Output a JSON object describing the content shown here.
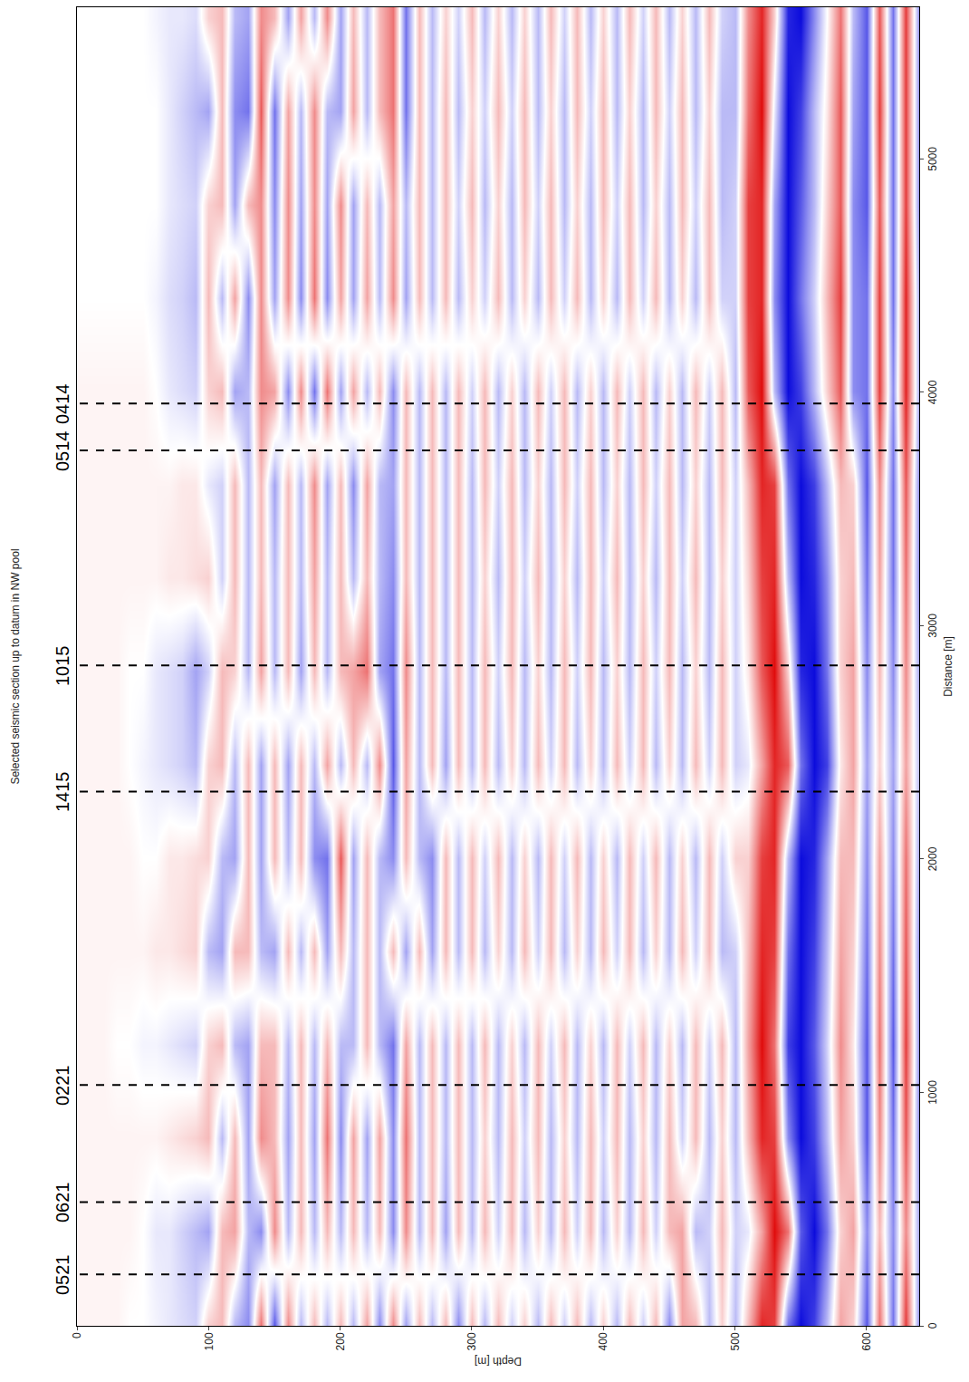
{
  "chart_data": {
    "type": "heatmap",
    "title": "Selected seismic section up to datum in NW pool",
    "x_label": "Distance [m]",
    "y_label": "Depth [m]",
    "xlim": [
      0,
      5650
    ],
    "ylim": [
      640,
      0
    ],
    "xticks": [
      0,
      1000,
      2000,
      3000,
      4000,
      5000
    ],
    "yticks": [
      0,
      100,
      200,
      300,
      400,
      500,
      600
    ],
    "zlim": [
      -1,
      1
    ],
    "wells": [
      {
        "text": "0521",
        "x": 220
      },
      {
        "text": "0621",
        "x": 530
      },
      {
        "text": "0221",
        "x": 1032
      },
      {
        "text": "1415",
        "x": 2289
      },
      {
        "text": "1015",
        "x": 2830
      },
      {
        "text": "0514",
        "x": 3751
      },
      {
        "text": "0414",
        "x": 3952
      }
    ],
    "line_style": "dash",
    "x": [
      0,
      400,
      800,
      1200,
      1600,
      2000,
      2400,
      2800,
      3200,
      3600,
      4000,
      4400,
      4800,
      5200,
      5600
    ],
    "y": [
      0,
      10,
      20,
      30,
      40,
      50,
      60,
      70,
      80,
      90,
      100,
      110,
      120,
      130,
      140,
      150,
      160,
      170,
      180,
      190,
      200,
      210,
      220,
      230,
      240,
      250,
      260,
      270,
      280,
      290,
      300,
      310,
      320,
      330,
      340,
      350,
      360,
      370,
      380,
      390,
      400,
      410,
      420,
      430,
      440,
      450,
      460,
      470,
      480,
      490,
      500,
      510,
      520,
      530,
      540,
      550,
      560,
      570,
      580,
      590,
      600,
      610,
      620,
      630,
      640
    ],
    "z": [
      [
        0.05,
        0.05,
        0.05,
        0.05,
        0.05,
        0.05,
        0.05,
        0.05,
        0.05,
        0.05,
        0.05,
        0,
        0,
        0,
        0
      ],
      [
        0.05,
        0.05,
        0.05,
        0.05,
        0.05,
        0.05,
        0.05,
        0.05,
        0.05,
        0.05,
        0.05,
        0,
        0,
        0,
        0
      ],
      [
        0.05,
        0.05,
        0.05,
        0.05,
        0.05,
        0.05,
        0.05,
        0.05,
        0.05,
        0.05,
        0.05,
        0,
        0,
        0,
        0
      ],
      [
        0.05,
        0.05,
        0.05,
        0,
        0.05,
        0.05,
        0.05,
        0.05,
        0.05,
        0.05,
        0.05,
        0,
        0,
        0,
        0
      ],
      [
        0,
        0.05,
        0.05,
        0,
        0.05,
        0.05,
        0,
        0,
        0.05,
        0.05,
        0.05,
        0,
        0,
        0,
        0
      ],
      [
        0,
        0,
        0.05,
        -0.05,
        0.05,
        0,
        -0.05,
        0,
        0.05,
        0.05,
        0.05,
        0,
        0,
        0,
        0
      ],
      [
        -0.05,
        -0.1,
        0.05,
        -0.05,
        0.1,
        0,
        -0.1,
        -0.1,
        0.05,
        0.05,
        0,
        -0.05,
        0,
        0,
        -0.05
      ],
      [
        -0.1,
        -0.1,
        0.1,
        -0.1,
        0.1,
        0.1,
        -0.15,
        -0.15,
        0.1,
        0.05,
        -0.1,
        -0.15,
        -0.1,
        -0.1,
        -0.1
      ],
      [
        -0.15,
        -0.2,
        0.15,
        -0.15,
        0.15,
        0.1,
        -0.2,
        -0.2,
        0.1,
        0.1,
        -0.15,
        -0.2,
        -0.15,
        -0.2,
        -0.1
      ],
      [
        -0.2,
        -0.3,
        0.2,
        -0.2,
        0.2,
        0.15,
        -0.3,
        -0.4,
        0.15,
        0.1,
        -0.2,
        -0.3,
        -0.2,
        -0.3,
        -0.15
      ],
      [
        0.2,
        -0.4,
        0.3,
        0.2,
        -0.3,
        0.2,
        0.2,
        -0.2,
        0.2,
        -0.1,
        0.2,
        0.3,
        0.2,
        -0.4,
        0.2
      ],
      [
        0.3,
        0.3,
        -0.3,
        0.3,
        -0.4,
        -0.3,
        0.3,
        0.3,
        -0.2,
        -0.2,
        0.3,
        -0.3,
        0.3,
        0.3,
        0.3
      ],
      [
        -0.3,
        0.4,
        0.3,
        -0.3,
        0.3,
        -0.4,
        -0.3,
        0.2,
        0.3,
        0.3,
        -0.4,
        0.4,
        -0.4,
        -0.5,
        -0.3
      ],
      [
        -0.5,
        -0.3,
        -0.4,
        -0.4,
        0.3,
        0.3,
        0.3,
        -0.3,
        -0.3,
        -0.3,
        -0.3,
        -0.5,
        0.3,
        -0.6,
        -0.4
      ],
      [
        0.6,
        -0.5,
        0.5,
        0.3,
        -0.3,
        -0.4,
        -0.4,
        0.4,
        0.3,
        0.3,
        0.5,
        0.5,
        0.5,
        0.7,
        0.5
      ],
      [
        -0.7,
        0.5,
        0.3,
        0.3,
        -0.4,
        0.3,
        0.3,
        -0.3,
        -0.3,
        -0.4,
        0.4,
        -0.4,
        -0.5,
        -0.6,
        0.3
      ],
      [
        0.5,
        -0.3,
        -0.4,
        -0.3,
        0.3,
        -0.3,
        -0.4,
        0.3,
        0.3,
        0.3,
        -0.5,
        0.5,
        0.5,
        0.4,
        -0.4
      ],
      [
        -0.3,
        0.3,
        0.3,
        0.3,
        -0.3,
        0.3,
        0.3,
        -0.4,
        -0.3,
        -0.3,
        0.5,
        -0.5,
        -0.4,
        -0.3,
        0.4
      ],
      [
        0.3,
        -0.3,
        -0.4,
        -0.3,
        0.3,
        -0.5,
        -0.3,
        0.3,
        0.4,
        0.5,
        -0.6,
        0.6,
        0.5,
        0.5,
        -0.3
      ],
      [
        -0.3,
        0.3,
        0.6,
        0.3,
        -0.4,
        -0.6,
        0.4,
        -0.3,
        -0.3,
        -0.4,
        0.6,
        -0.5,
        -0.4,
        -0.3,
        0.5
      ],
      [
        0.3,
        -0.3,
        -0.5,
        -0.3,
        0.3,
        0.7,
        -0.3,
        0.3,
        0.3,
        0.3,
        -0.4,
        0.4,
        0.5,
        -0.4,
        -0.4
      ],
      [
        -0.3,
        0.3,
        0.4,
        -0.3,
        -0.3,
        -0.4,
        0.3,
        0.4,
        -0.3,
        -0.5,
        0.4,
        -0.4,
        -0.4,
        0.4,
        0.3
      ],
      [
        0.4,
        -0.3,
        -0.4,
        0.3,
        0.3,
        0.3,
        -0.3,
        0.6,
        0.3,
        0.4,
        -0.3,
        0.4,
        0.3,
        -0.3,
        -0.3
      ],
      [
        -0.5,
        0.3,
        0.4,
        -0.3,
        -0.3,
        -0.3,
        0.5,
        -0.4,
        -0.3,
        -0.3,
        0.3,
        -0.3,
        -0.3,
        0.3,
        0.3
      ],
      [
        0.5,
        -0.5,
        -0.5,
        -0.6,
        0.3,
        -0.5,
        -0.7,
        -0.6,
        -0.5,
        -0.4,
        -0.5,
        0.5,
        0.4,
        0.6,
        0.6
      ],
      [
        -0.4,
        0.5,
        0.6,
        0.4,
        -0.4,
        0.3,
        0.4,
        0.5,
        0.3,
        0.3,
        0.3,
        -0.4,
        -0.3,
        -0.6,
        -0.6
      ],
      [
        0.3,
        -0.3,
        -0.3,
        -0.3,
        0.3,
        -0.3,
        -0.3,
        -0.3,
        -0.3,
        -0.3,
        -0.3,
        0.3,
        0.3,
        0.3,
        0.3
      ],
      [
        -0.3,
        0.3,
        0.3,
        0.3,
        -0.4,
        -0.5,
        0.3,
        0.3,
        0.3,
        0.3,
        0.3,
        -0.3,
        -0.3,
        -0.3,
        -0.3
      ],
      [
        0.3,
        -0.4,
        -0.3,
        -0.3,
        0.3,
        0.3,
        -0.4,
        -0.3,
        -0.3,
        -0.3,
        -0.3,
        0.3,
        0.3,
        0.3,
        0.2
      ],
      [
        -0.5,
        0.3,
        0.3,
        0.3,
        -0.3,
        -0.3,
        0.3,
        0.3,
        0.3,
        0.3,
        0.3,
        -0.3,
        -0.2,
        -0.3,
        -0.2
      ],
      [
        0.3,
        -0.3,
        -0.3,
        -0.3,
        0.3,
        0.3,
        -0.3,
        -0.3,
        -0.3,
        -0.3,
        -0.2,
        0.2,
        0.3,
        0.2,
        0.3
      ],
      [
        -0.3,
        0.3,
        0.2,
        0.3,
        -0.3,
        -0.2,
        0.3,
        0.3,
        0.2,
        0.3,
        0.3,
        -0.2,
        -0.3,
        -0.2,
        -0.3
      ],
      [
        0.3,
        -0.2,
        -0.3,
        -0.3,
        0.2,
        0.3,
        -0.3,
        -0.2,
        -0.3,
        -0.2,
        -0.3,
        0.3,
        0.2,
        0.3,
        0.2
      ],
      [
        -0.2,
        0.3,
        0.3,
        0.2,
        -0.3,
        -0.3,
        0.2,
        0.3,
        0.3,
        0.3,
        0.2,
        -0.3,
        -0.3,
        -0.2,
        -0.3
      ],
      [
        0.2,
        -0.3,
        -0.2,
        -0.3,
        0.3,
        0.2,
        -0.3,
        -0.3,
        -0.2,
        -0.3,
        -0.3,
        0.2,
        0.3,
        0.3,
        0.2
      ],
      [
        -0.3,
        0.2,
        0.3,
        0.3,
        -0.2,
        -0.3,
        0.3,
        0.2,
        0.3,
        0.2,
        0.3,
        -0.3,
        -0.2,
        -0.3,
        -0.3
      ],
      [
        0.3,
        -0.3,
        -0.3,
        -0.2,
        0.3,
        0.3,
        -0.2,
        -0.3,
        -0.3,
        -0.3,
        -0.2,
        0.3,
        0.3,
        0.2,
        0.3
      ],
      [
        -0.2,
        0.3,
        0.2,
        0.3,
        -0.3,
        -0.2,
        0.3,
        0.3,
        0.2,
        0.3,
        0.3,
        -0.2,
        -0.3,
        -0.3,
        -0.2
      ],
      [
        0.3,
        -0.2,
        -0.3,
        -0.3,
        0.2,
        0.3,
        -0.3,
        -0.2,
        -0.3,
        -0.2,
        -0.3,
        0.3,
        0.2,
        0.3,
        0.3
      ],
      [
        -0.3,
        0.3,
        0.3,
        0.2,
        -0.3,
        -0.3,
        0.2,
        0.3,
        0.3,
        0.3,
        0.2,
        -0.3,
        -0.3,
        -0.2,
        -0.3
      ],
      [
        0.2,
        -0.3,
        -0.2,
        -0.3,
        0.3,
        0.2,
        -0.3,
        -0.3,
        -0.2,
        -0.3,
        -0.3,
        0.2,
        0.3,
        0.3,
        0.2
      ],
      [
        -0.3,
        0.2,
        0.3,
        0.3,
        -0.2,
        -0.3,
        0.3,
        0.2,
        0.3,
        0.2,
        0.3,
        -0.3,
        -0.2,
        -0.3,
        -0.3
      ],
      [
        0.3,
        -0.3,
        -0.3,
        -0.2,
        0.3,
        0.3,
        -0.2,
        -0.3,
        -0.3,
        -0.3,
        -0.2,
        0.3,
        0.3,
        0.2,
        0.3
      ],
      [
        -0.2,
        0.3,
        0.2,
        0.3,
        -0.3,
        -0.2,
        0.3,
        0.3,
        0.2,
        0.3,
        0.3,
        -0.2,
        -0.3,
        -0.3,
        -0.2
      ],
      [
        0.3,
        -0.2,
        -0.3,
        -0.3,
        0.2,
        0.3,
        -0.3,
        -0.2,
        -0.3,
        -0.2,
        -0.3,
        0.3,
        0.2,
        0.3,
        0.3
      ],
      [
        -0.5,
        0.3,
        0.3,
        0.2,
        -0.3,
        -0.3,
        0.2,
        0.3,
        0.3,
        0.3,
        0.2,
        -0.3,
        -0.3,
        -0.2,
        -0.3
      ],
      [
        0.4,
        0.4,
        -0.2,
        -0.3,
        0.3,
        0.2,
        -0.3,
        -0.3,
        -0.2,
        -0.3,
        -0.3,
        0.2,
        0.3,
        0.3,
        0.2
      ],
      [
        0.3,
        -0.3,
        0.3,
        0.3,
        -0.2,
        -0.3,
        0.3,
        0.2,
        0.3,
        0.2,
        0.3,
        -0.3,
        -0.2,
        -0.3,
        -0.3
      ],
      [
        -0.3,
        -0.2,
        -0.3,
        -0.2,
        0.3,
        0.3,
        -0.2,
        -0.3,
        -0.3,
        -0.3,
        -0.2,
        0.3,
        0.3,
        0.2,
        0.3
      ],
      [
        0.2,
        0.3,
        0.2,
        0.3,
        -0.3,
        -0.2,
        0.3,
        0.3,
        0.2,
        0.3,
        0.3,
        -0.2,
        -0.3,
        -0.3,
        -0.2
      ],
      [
        -0.3,
        -0.2,
        -0.3,
        -0.3,
        -0.2,
        0.2,
        -0.2,
        -0.2,
        -0.2,
        -0.2,
        -0.3,
        -0.2,
        -0.2,
        -0.3,
        -0.3
      ],
      [
        0.3,
        -0.1,
        0.3,
        0.4,
        0.3,
        0.2,
        -0.1,
        0.1,
        0.2,
        0.3,
        0.7,
        0.8,
        0.8,
        0.6,
        0.5
      ],
      [
        0.9,
        0.4,
        0.9,
        1.0,
        0.9,
        0.8,
        0.4,
        0.7,
        0.8,
        0.9,
        1.0,
        0.9,
        0.9,
        1.0,
        0.9
      ],
      [
        0.8,
        1.0,
        0.8,
        0.6,
        0.8,
        0.9,
        0.9,
        1.0,
        0.9,
        0.8,
        -0.3,
        -0.5,
        -0.4,
        -0.1,
        0.2
      ],
      [
        -0.6,
        0.6,
        -0.5,
        -0.8,
        -0.6,
        -0.3,
        0.7,
        0.2,
        -0.3,
        -0.6,
        -1.0,
        -1.0,
        -1.0,
        -1.0,
        -0.9
      ],
      [
        -1.0,
        -0.7,
        -1.0,
        -1.0,
        -1.0,
        -1.0,
        -0.6,
        -0.9,
        -1.0,
        -1.0,
        -0.8,
        -0.6,
        -0.7,
        -0.8,
        -1.0
      ],
      [
        -0.8,
        -1.0,
        -0.8,
        -0.7,
        -0.8,
        -0.9,
        -1.0,
        -1.0,
        -0.9,
        -0.8,
        -0.3,
        -0.2,
        -0.3,
        -0.3,
        -0.5
      ],
      [
        -0.3,
        -0.6,
        -0.3,
        -0.2,
        -0.3,
        -0.4,
        -0.8,
        -0.6,
        -0.5,
        -0.3,
        0.2,
        0.3,
        0.2,
        0.1,
        0
      ],
      [
        0.4,
        0.2,
        0.4,
        0.5,
        0.4,
        0.3,
        0.1,
        0.2,
        0.2,
        0.3,
        0.7,
        0.8,
        0.7,
        0.7,
        0.6
      ],
      [
        0.2,
        0.4,
        0.2,
        0.1,
        0.2,
        0.3,
        0.4,
        0.4,
        0.3,
        0.2,
        -0.5,
        -0.5,
        -0.5,
        -0.4,
        -0.3
      ],
      [
        -0.7,
        -0.5,
        -0.7,
        -0.7,
        -0.6,
        -0.5,
        -0.4,
        -0.5,
        -0.6,
        -0.7,
        -0.6,
        -0.6,
        -0.7,
        -0.7,
        -0.7
      ],
      [
        0.6,
        0.3,
        0.5,
        0.6,
        0.5,
        0.4,
        0.2,
        0.3,
        0.4,
        0.5,
        0.8,
        0.8,
        0.7,
        0.8,
        0.7
      ],
      [
        -0.6,
        -0.5,
        -0.6,
        -0.7,
        -0.6,
        -0.5,
        -0.4,
        -0.5,
        -0.6,
        -0.6,
        -0.5,
        -0.6,
        -0.6,
        -0.6,
        -0.6
      ],
      [
        0.8,
        0.5,
        0.7,
        0.8,
        0.7,
        0.6,
        0.4,
        0.5,
        0.6,
        0.7,
        0.9,
        0.9,
        0.8,
        0.8,
        0.8
      ],
      [
        -0.5,
        -0.4,
        -0.5,
        -0.5,
        -0.5,
        -0.4,
        -0.3,
        -0.4,
        -0.5,
        -0.5,
        -0.4,
        -0.4,
        -0.5,
        -0.5,
        -0.5
      ]
    ]
  }
}
